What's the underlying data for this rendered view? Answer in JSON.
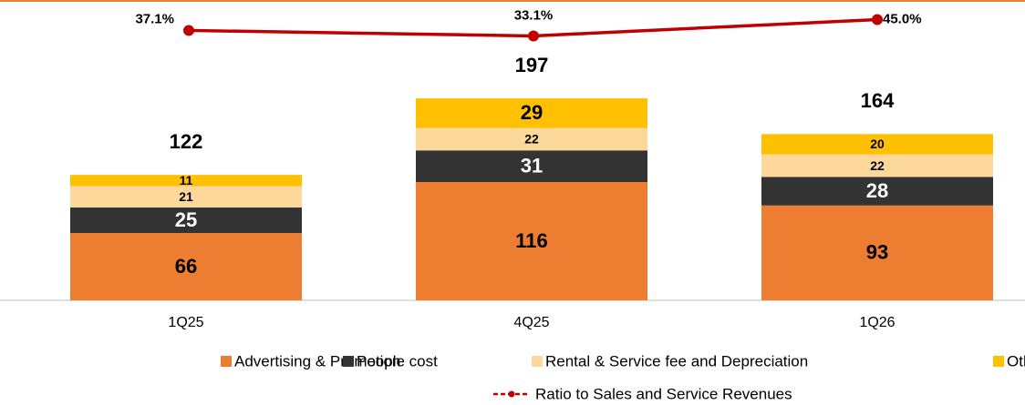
{
  "chart_data": {
    "type": "bar",
    "stacked": true,
    "categories": [
      "1Q25",
      "4Q25",
      "1Q26"
    ],
    "series": [
      {
        "name": "Advertising & Promotion",
        "color": "#ED7D31",
        "values": [
          66,
          116,
          93
        ]
      },
      {
        "name": "People cost",
        "color": "#333333",
        "values": [
          25,
          31,
          28
        ]
      },
      {
        "name": "Rental & Service fee and Depreciation",
        "color": "#FCD89A",
        "values": [
          21,
          22,
          22
        ]
      },
      {
        "name": "Others",
        "color": "#FFC000",
        "values": [
          11,
          29,
          20
        ]
      },
      {
        "name": "Ratio to Sales and Service Revenues",
        "color": "#C00000",
        "type": "line",
        "axis": "y2",
        "values": [
          37.1,
          33.1,
          45.0
        ],
        "value_labels": [
          "37.1%",
          "33.1%",
          "45.0%"
        ]
      }
    ],
    "totals": [
      122,
      197,
      164
    ],
    "ylim": [
      0,
      290
    ],
    "y2lim": [
      -160,
      56
    ],
    "legend": "bottom"
  }
}
